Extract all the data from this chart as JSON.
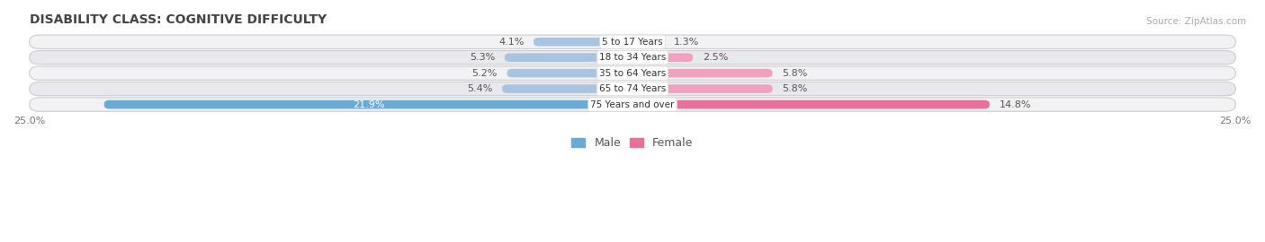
{
  "title": "DISABILITY CLASS: COGNITIVE DIFFICULTY",
  "source": "Source: ZipAtlas.com",
  "categories": [
    "5 to 17 Years",
    "18 to 34 Years",
    "35 to 64 Years",
    "65 to 74 Years",
    "75 Years and over"
  ],
  "male_values": [
    4.1,
    5.3,
    5.2,
    5.4,
    21.9
  ],
  "female_values": [
    1.3,
    2.5,
    5.8,
    5.8,
    14.8
  ],
  "max_val": 25.0,
  "male_color_normal": "#a8c4e0",
  "female_color_normal": "#f0a0c0",
  "male_color_last": "#6aaad4",
  "female_color_last": "#e8709a",
  "row_bg_light": "#f2f2f5",
  "row_bg_dark": "#e8e8ee",
  "legend_male_color": "#6aaad4",
  "legend_female_color": "#e8709a",
  "label_color_outer": "#555555",
  "label_color_inner": "#ffffff",
  "axis_label_color": "#777777",
  "title_fontsize": 10,
  "bar_fontsize": 8,
  "axis_fontsize": 8,
  "legend_fontsize": 9
}
